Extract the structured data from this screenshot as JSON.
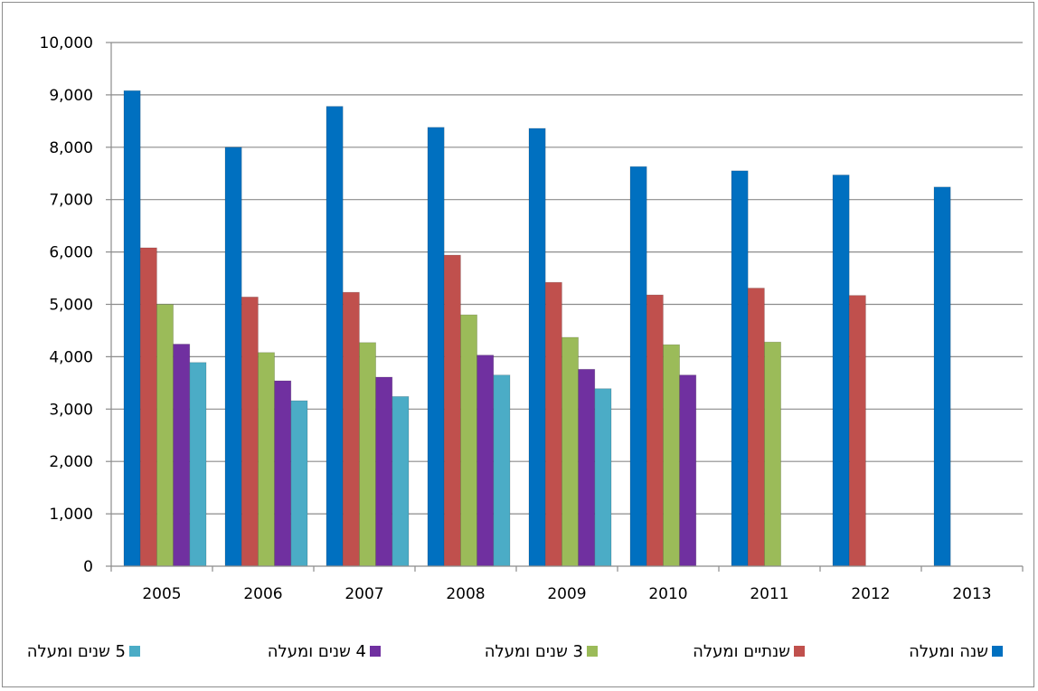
{
  "chart_data": {
    "type": "bar",
    "title": "",
    "xlabel": "",
    "ylabel": "",
    "categories": [
      "2005",
      "2006",
      "2007",
      "2008",
      "2009",
      "2010",
      "2011",
      "2012",
      "2013"
    ],
    "ylim": [
      0,
      10000
    ],
    "yticks": [
      0,
      1000,
      2000,
      3000,
      4000,
      5000,
      6000,
      7000,
      8000,
      9000,
      10000
    ],
    "ytick_labels": [
      "0",
      "1,000",
      "2,000",
      "3,000",
      "4,000",
      "5,000",
      "6,000",
      "7,000",
      "8,000",
      "9,000",
      "10,000"
    ],
    "grid": true,
    "legend_position": "bottom",
    "series": [
      {
        "name": "שנה ומעלה",
        "color": "#0070C0",
        "values": [
          9080,
          8000,
          8780,
          8380,
          8360,
          7630,
          7550,
          7470,
          7240
        ]
      },
      {
        "name": "שנתיים ומעלה",
        "color": "#C0504D",
        "values": [
          6080,
          5140,
          5230,
          5940,
          5420,
          5180,
          5310,
          5170,
          null
        ]
      },
      {
        "name": "3 שנים ומעלה",
        "color": "#9BBB59",
        "values": [
          5000,
          4080,
          4270,
          4800,
          4370,
          4230,
          4280,
          null,
          null
        ]
      },
      {
        "name": "4 שנים ומעלה",
        "color": "#7030A0",
        "values": [
          4240,
          3540,
          3610,
          4030,
          3760,
          3650,
          null,
          null,
          null
        ]
      },
      {
        "name": "5 שנים ומעלה",
        "color": "#4BACC6",
        "values": [
          3890,
          3160,
          3240,
          3650,
          3390,
          null,
          null,
          null,
          null
        ]
      }
    ]
  }
}
